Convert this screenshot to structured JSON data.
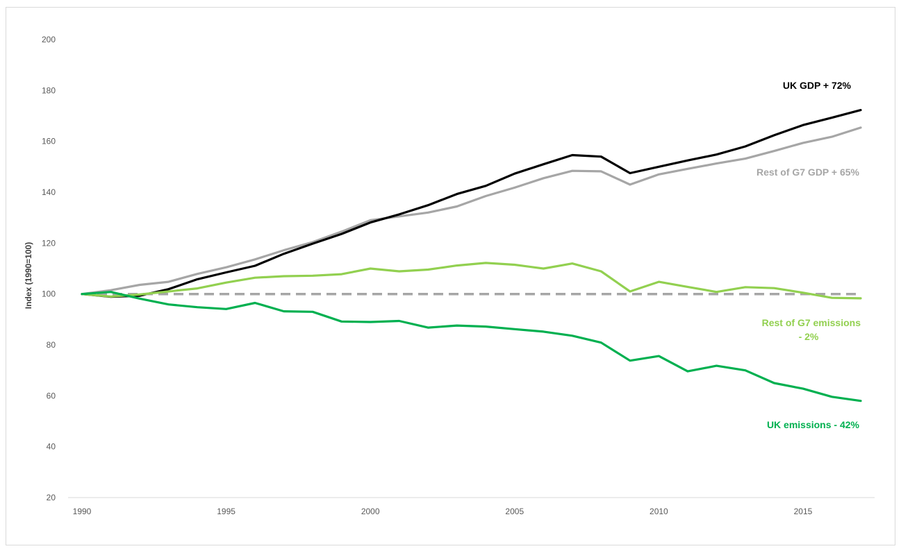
{
  "chart_data": {
    "type": "line",
    "title": "",
    "xlabel": "",
    "ylabel": "Index (1990=100)",
    "xlim": [
      1990,
      2017
    ],
    "ylim": [
      20,
      200
    ],
    "x_ticks": [
      "1990",
      "1995",
      "2000",
      "2005",
      "2010",
      "2015"
    ],
    "y_ticks": [
      "20",
      "40",
      "60",
      "80",
      "100",
      "120",
      "140",
      "160",
      "180",
      "200"
    ],
    "grid": false,
    "legend": "none",
    "x": [
      1990,
      1991,
      1992,
      1993,
      1994,
      1995,
      1996,
      1997,
      1998,
      1999,
      2000,
      2001,
      2002,
      2003,
      2004,
      2005,
      2006,
      2007,
      2008,
      2009,
      2010,
      2011,
      2012,
      2013,
      2014,
      2015,
      2016,
      2017
    ],
    "series": [
      {
        "key": "uk_gdp",
        "color": "#000000",
        "dashed": false,
        "values": [
          100,
          98.9,
          99.3,
          101.9,
          105.8,
          108.5,
          111.1,
          115.8,
          119.8,
          123.6,
          128.1,
          131.3,
          134.9,
          139.3,
          142.5,
          147.3,
          151.0,
          154.6,
          154.0,
          147.5,
          150.0,
          152.5,
          154.8,
          158.0,
          162.4,
          166.4,
          169.3,
          172.3
        ]
      },
      {
        "key": "rest_g7_gdp",
        "color": "#a6a6a6",
        "dashed": false,
        "values": [
          100,
          101.5,
          103.6,
          104.8,
          107.9,
          110.5,
          113.6,
          117.2,
          120.4,
          124.5,
          129.0,
          130.5,
          132.0,
          134.4,
          138.5,
          141.8,
          145.5,
          148.4,
          148.2,
          143.0,
          147.0,
          149.2,
          151.3,
          153.2,
          156.2,
          159.4,
          161.8,
          165.4
        ]
      },
      {
        "key": "rest_g7_emissions",
        "color": "#92d050",
        "dashed": false,
        "values": [
          100,
          99.0,
          99.8,
          101.0,
          102.2,
          104.5,
          106.4,
          107.0,
          107.2,
          107.8,
          110.0,
          108.9,
          109.6,
          111.2,
          112.2,
          111.5,
          110.0,
          112.0,
          108.9,
          101.0,
          104.8,
          102.8,
          100.8,
          102.7,
          102.3,
          100.5,
          98.5,
          98.3
        ]
      },
      {
        "key": "uk_emissions",
        "color": "#00b050",
        "dashed": false,
        "values": [
          100,
          100.8,
          98.2,
          95.9,
          94.8,
          94.1,
          96.5,
          93.2,
          93.0,
          89.2,
          89.0,
          89.4,
          86.8,
          87.6,
          87.2,
          86.2,
          85.2,
          83.6,
          80.9,
          73.8,
          75.6,
          69.6,
          71.8,
          70.0,
          65.0,
          62.8,
          59.6,
          58.0
        ]
      },
      {
        "key": "baseline",
        "color": "#a6a6a6",
        "dashed": true,
        "values": [
          100,
          100,
          100,
          100,
          100,
          100,
          100,
          100,
          100,
          100,
          100,
          100,
          100,
          100,
          100,
          100,
          100,
          100,
          100,
          100,
          100,
          100,
          100,
          100,
          100,
          100,
          100,
          100
        ]
      }
    ],
    "annotations": [
      {
        "key": "uk_gdp",
        "lines": [
          "UK GDP + 72%"
        ],
        "color": "#000000"
      },
      {
        "key": "rest_g7_gdp",
        "lines": [
          "Rest of G7 GDP + 65%"
        ],
        "color": "#a6a6a6"
      },
      {
        "key": "rest_g7_emissions",
        "lines": [
          "Rest of G7 emissions",
          "- 2%"
        ],
        "color": "#92d050"
      },
      {
        "key": "uk_emissions",
        "lines": [
          "UK emissions - 42%"
        ],
        "color": "#00b050"
      }
    ]
  }
}
